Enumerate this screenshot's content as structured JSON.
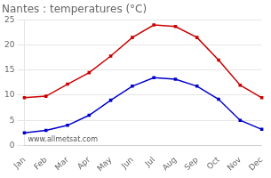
{
  "chart_data": {
    "type": "line",
    "title": "Nantes : temperatures (°C)",
    "categories": [
      "Jan",
      "Feb",
      "Mar",
      "Apr",
      "May",
      "Jun",
      "Jul",
      "Aug",
      "Sep",
      "Oct",
      "Nov",
      "Dec"
    ],
    "series": [
      {
        "color": "#cc0000",
        "marker": "square",
        "values": [
          9.5,
          9.8,
          12.2,
          14.5,
          17.8,
          21.5,
          24.0,
          23.7,
          21.5,
          17.0,
          12.0,
          9.5
        ]
      },
      {
        "color": "#0000cc",
        "marker": "square",
        "values": [
          2.5,
          3.0,
          4.0,
          6.0,
          9.0,
          11.8,
          13.5,
          13.2,
          11.8,
          9.2,
          5.0,
          3.2
        ]
      }
    ],
    "ylim": [
      0,
      25
    ],
    "yticks": [
      0,
      5,
      10,
      15,
      20,
      25
    ],
    "grid": "y",
    "annotation": "www.allmetsat.com"
  }
}
